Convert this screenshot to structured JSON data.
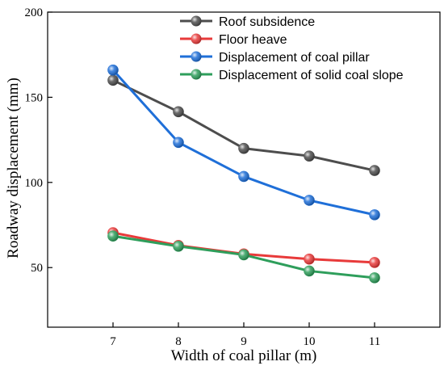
{
  "chart_data": {
    "type": "line",
    "title": "",
    "xlabel": "Width of coal pillar (m)",
    "ylabel": "Roadway displacement (mm)",
    "x": [
      7,
      8,
      9,
      10,
      11
    ],
    "xlim": [
      6,
      12
    ],
    "ylim": [
      15,
      200
    ],
    "xticks": [
      "7",
      "8",
      "9",
      "10",
      "11"
    ],
    "yticks": [
      "50",
      "100",
      "150",
      "200"
    ],
    "grid": false,
    "legend_position": "top-right",
    "series": [
      {
        "name": "Roof subsidence",
        "color": "#4d4d4d",
        "values": [
          160,
          141.5,
          120,
          115.5,
          107
        ]
      },
      {
        "name": "Floor heave",
        "color": "#e83a3a",
        "values": [
          70.5,
          63,
          58,
          55,
          53
        ]
      },
      {
        "name": "Displacement of coal pillar",
        "color": "#1f6fd8",
        "values": [
          166,
          123.5,
          103.5,
          89.5,
          81
        ]
      },
      {
        "name": "Displacement of solid coal slope",
        "color": "#2e9e5b",
        "values": [
          68.5,
          62.5,
          57.5,
          48,
          44
        ]
      }
    ]
  }
}
